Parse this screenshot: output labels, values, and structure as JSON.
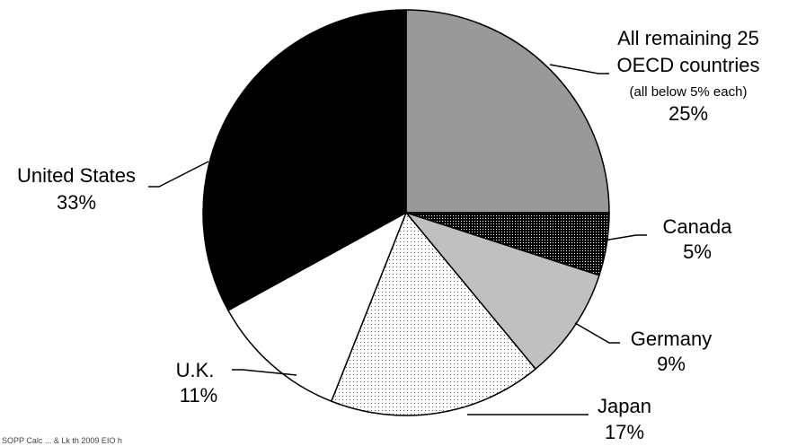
{
  "chart_data": {
    "type": "pie",
    "title": "",
    "slices": [
      {
        "label": "All remaining 25",
        "label2": "OECD countries",
        "note": "(all below 5% each)",
        "value": 25,
        "pct_text": "25%",
        "fill": "#999999",
        "pattern": "solid"
      },
      {
        "label": "Canada",
        "value": 5,
        "pct_text": "5%",
        "fill": "#000000",
        "pattern": "dense-dots"
      },
      {
        "label": "Germany",
        "value": 9,
        "pct_text": "9%",
        "fill": "#c0c0c0",
        "pattern": "solid"
      },
      {
        "label": "Japan",
        "value": 17,
        "pct_text": "17%",
        "fill": "#ffffff",
        "pattern": "sparse-dots"
      },
      {
        "label": "U.K.",
        "value": 11,
        "pct_text": "11%",
        "fill": "#ffffff",
        "pattern": "solid"
      },
      {
        "label": "United States",
        "value": 33,
        "pct_text": "33%",
        "fill": "#000000",
        "pattern": "solid"
      }
    ],
    "start_angle_deg": 0,
    "direction": "clockwise",
    "legend": "none",
    "source_note": "SOPP Calc ... & Lk th 2009 EIO h"
  }
}
